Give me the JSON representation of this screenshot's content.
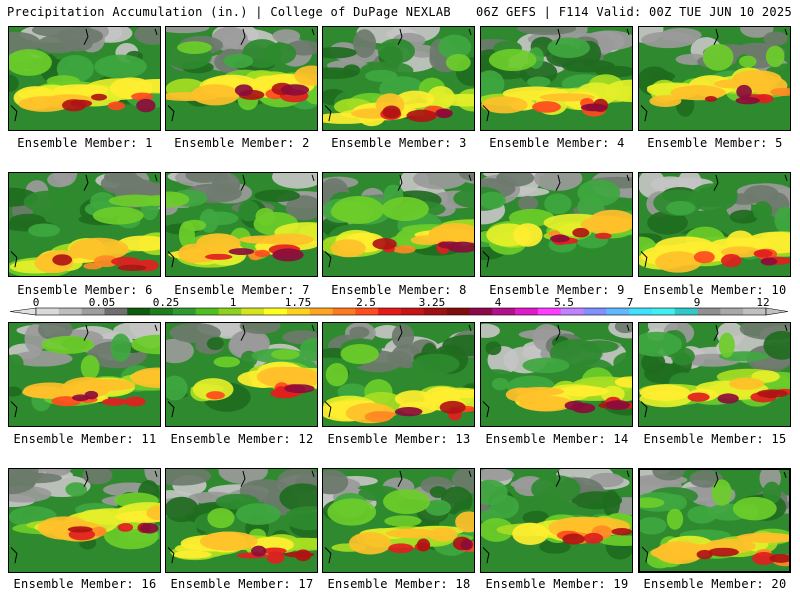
{
  "header": {
    "left_title": "Precipitation Accumulation (in.) | College of DuPage NEXLAB",
    "right_title": "06Z GEFS | F114 Valid: 00Z TUE JUN 10 2025"
  },
  "legend": {
    "labels": [
      "0",
      "0.05",
      "0.25",
      "1",
      "1.75",
      "2.5",
      "3.25",
      "4",
      "5.5",
      "7",
      "9",
      "12"
    ],
    "colors": [
      "#d9d9d9",
      "#bdbdbd",
      "#9e9e9e",
      "#6f6f6f",
      "#0d5d0d",
      "#1e7d1e",
      "#2f9a2f",
      "#4fbf1f",
      "#8fd11f",
      "#d4e51f",
      "#ffff1f",
      "#ffd21f",
      "#ffa51f",
      "#ff7a1f",
      "#ff4d1f",
      "#e61a1a",
      "#c81414",
      "#a01010",
      "#800c0c",
      "#8c0a4a",
      "#b5108c",
      "#e01ac8",
      "#ff3cff",
      "#c080ff",
      "#8090ff",
      "#60b8ff",
      "#40e0ff",
      "#40f0f0",
      "#30c8c8",
      "#909090",
      "#a8a8a8",
      "#c0c0c0"
    ]
  },
  "panels": [
    {
      "label": "Ensemble Member: 1"
    },
    {
      "label": "Ensemble Member: 2"
    },
    {
      "label": "Ensemble Member: 3"
    },
    {
      "label": "Ensemble Member: 4"
    },
    {
      "label": "Ensemble Member: 5"
    },
    {
      "label": "Ensemble Member: 6"
    },
    {
      "label": "Ensemble Member: 7"
    },
    {
      "label": "Ensemble Member: 8"
    },
    {
      "label": "Ensemble Member: 9"
    },
    {
      "label": "Ensemble Member: 10"
    },
    {
      "label": "Ensemble Member: 11"
    },
    {
      "label": "Ensemble Member: 12"
    },
    {
      "label": "Ensemble Member: 13"
    },
    {
      "label": "Ensemble Member: 14"
    },
    {
      "label": "Ensemble Member: 15"
    },
    {
      "label": "Ensemble Member: 16"
    },
    {
      "label": "Ensemble Member: 17"
    },
    {
      "label": "Ensemble Member: 18"
    },
    {
      "label": "Ensemble Member: 19"
    },
    {
      "label": "Ensemble Member: 20"
    }
  ]
}
